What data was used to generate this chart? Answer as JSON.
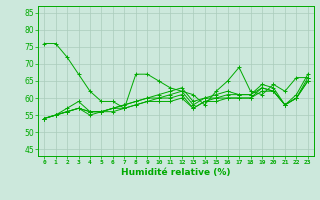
{
  "title": "",
  "xlabel": "Humidité relative (%)",
  "ylabel": "",
  "xlim": [
    -0.5,
    23.5
  ],
  "ylim": [
    43,
    87
  ],
  "yticks": [
    45,
    50,
    55,
    60,
    65,
    70,
    75,
    80,
    85
  ],
  "xticks": [
    0,
    1,
    2,
    3,
    4,
    5,
    6,
    7,
    8,
    9,
    10,
    11,
    12,
    13,
    14,
    15,
    16,
    17,
    18,
    19,
    20,
    21,
    22,
    23
  ],
  "bg_color": "#cce8dc",
  "grid_color": "#aaccbb",
  "line_color": "#00aa00",
  "marker": "+",
  "series": [
    [
      76,
      76,
      72,
      67,
      62,
      59,
      59,
      57,
      67,
      67,
      65,
      63,
      62,
      61,
      58,
      62,
      65,
      69,
      62,
      61,
      64,
      62,
      66,
      66
    ],
    [
      54,
      55,
      57,
      59,
      56,
      56,
      57,
      58,
      59,
      60,
      61,
      62,
      63,
      59,
      60,
      61,
      62,
      61,
      61,
      64,
      63,
      58,
      61,
      67
    ],
    [
      54,
      55,
      56,
      57,
      56,
      56,
      57,
      58,
      59,
      60,
      60,
      61,
      62,
      58,
      60,
      60,
      61,
      61,
      61,
      63,
      62,
      58,
      60,
      66
    ],
    [
      54,
      55,
      56,
      57,
      56,
      56,
      57,
      57,
      58,
      59,
      60,
      60,
      61,
      57,
      59,
      60,
      60,
      60,
      60,
      63,
      62,
      58,
      60,
      65
    ],
    [
      54,
      55,
      56,
      57,
      55,
      56,
      56,
      57,
      58,
      59,
      59,
      59,
      60,
      57,
      59,
      59,
      60,
      60,
      60,
      62,
      62,
      58,
      60,
      65
    ]
  ]
}
